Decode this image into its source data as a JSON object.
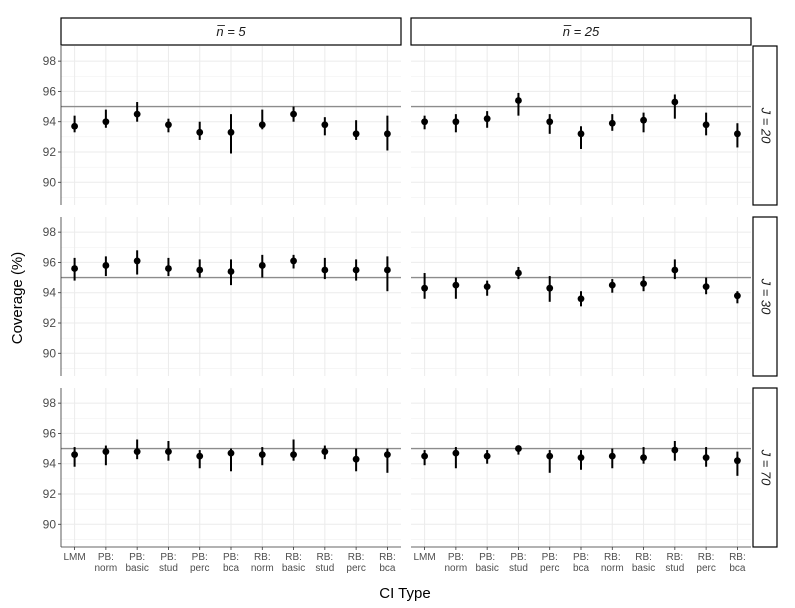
{
  "chart_data": {
    "type": "errorbar-scatter",
    "xlabel": "CI Type",
    "ylabel": "Coverage (%)",
    "ylim": [
      88.5,
      99
    ],
    "yticks": [
      90,
      92,
      94,
      96,
      98
    ],
    "reference_line": 95,
    "grid": true,
    "categories": [
      [
        "LMM"
      ],
      [
        "PB:",
        "norm"
      ],
      [
        "PB:",
        "basic"
      ],
      [
        "PB:",
        "stud"
      ],
      [
        "PB:",
        "perc"
      ],
      [
        "PB:",
        "bca"
      ],
      [
        "RB:",
        "norm"
      ],
      [
        "RB:",
        "basic"
      ],
      [
        "RB:",
        "stud"
      ],
      [
        "RB:",
        "perc"
      ],
      [
        "RB:",
        "bca"
      ]
    ],
    "col_facets": [
      "n̅ = 5",
      "n̅ = 25"
    ],
    "row_facets": [
      "J = 20",
      "J = 30",
      "J = 70"
    ],
    "panels": [
      {
        "row": 0,
        "col": 0,
        "y": [
          93.7,
          94.0,
          94.5,
          93.8,
          93.3,
          93.3,
          93.8,
          94.5,
          93.8,
          93.2,
          93.2
        ],
        "lo": [
          93.3,
          93.6,
          94.0,
          93.3,
          92.8,
          91.9,
          93.5,
          94.0,
          93.1,
          92.8,
          92.1
        ],
        "hi": [
          94.4,
          94.8,
          95.3,
          94.2,
          94.0,
          94.5,
          94.8,
          95.0,
          94.3,
          94.1,
          94.4
        ]
      },
      {
        "row": 0,
        "col": 1,
        "y": [
          94.0,
          94.0,
          94.2,
          95.4,
          94.0,
          93.2,
          93.9,
          94.1,
          95.3,
          93.8,
          93.2
        ],
        "lo": [
          93.5,
          93.3,
          93.6,
          94.4,
          93.2,
          92.2,
          93.4,
          93.3,
          94.2,
          93.1,
          92.3
        ],
        "hi": [
          94.4,
          94.5,
          94.7,
          95.9,
          94.5,
          93.7,
          94.5,
          94.6,
          95.8,
          94.6,
          93.9
        ]
      },
      {
        "row": 1,
        "col": 0,
        "y": [
          95.6,
          95.8,
          96.1,
          95.6,
          95.5,
          95.4,
          95.8,
          96.1,
          95.5,
          95.5,
          95.5
        ],
        "lo": [
          94.8,
          95.1,
          95.2,
          95.1,
          95.0,
          94.5,
          95.0,
          95.6,
          94.9,
          94.8,
          94.1
        ],
        "hi": [
          96.3,
          96.4,
          96.8,
          96.3,
          96.2,
          96.2,
          96.5,
          96.5,
          96.3,
          96.2,
          96.4
        ]
      },
      {
        "row": 1,
        "col": 1,
        "y": [
          94.3,
          94.5,
          94.4,
          95.3,
          94.3,
          93.6,
          94.5,
          94.6,
          95.5,
          94.4,
          93.8
        ],
        "lo": [
          93.6,
          93.6,
          93.8,
          94.9,
          93.4,
          93.1,
          94.0,
          94.1,
          94.9,
          93.9,
          93.3
        ],
        "hi": [
          95.3,
          95.0,
          94.8,
          95.7,
          95.1,
          94.1,
          94.9,
          95.1,
          96.2,
          95.0,
          94.1
        ]
      },
      {
        "row": 2,
        "col": 0,
        "y": [
          94.6,
          94.8,
          94.8,
          94.8,
          94.5,
          94.7,
          94.6,
          94.6,
          94.8,
          94.3,
          94.6
        ],
        "lo": [
          93.8,
          93.9,
          94.3,
          94.2,
          93.7,
          93.5,
          93.9,
          94.2,
          94.3,
          93.5,
          93.4
        ],
        "hi": [
          95.1,
          95.2,
          95.6,
          95.5,
          94.9,
          95.0,
          95.1,
          95.6,
          95.2,
          95.0,
          95.0
        ]
      },
      {
        "row": 2,
        "col": 1,
        "y": [
          94.5,
          94.7,
          94.5,
          95.0,
          94.5,
          94.4,
          94.5,
          94.4,
          94.9,
          94.4,
          94.2
        ],
        "lo": [
          93.9,
          93.7,
          94.0,
          94.6,
          93.4,
          93.6,
          93.7,
          94.0,
          94.2,
          93.8,
          93.2
        ],
        "hi": [
          94.9,
          95.1,
          94.9,
          95.2,
          94.9,
          94.9,
          95.0,
          95.1,
          95.5,
          95.1,
          94.8
        ]
      }
    ]
  }
}
